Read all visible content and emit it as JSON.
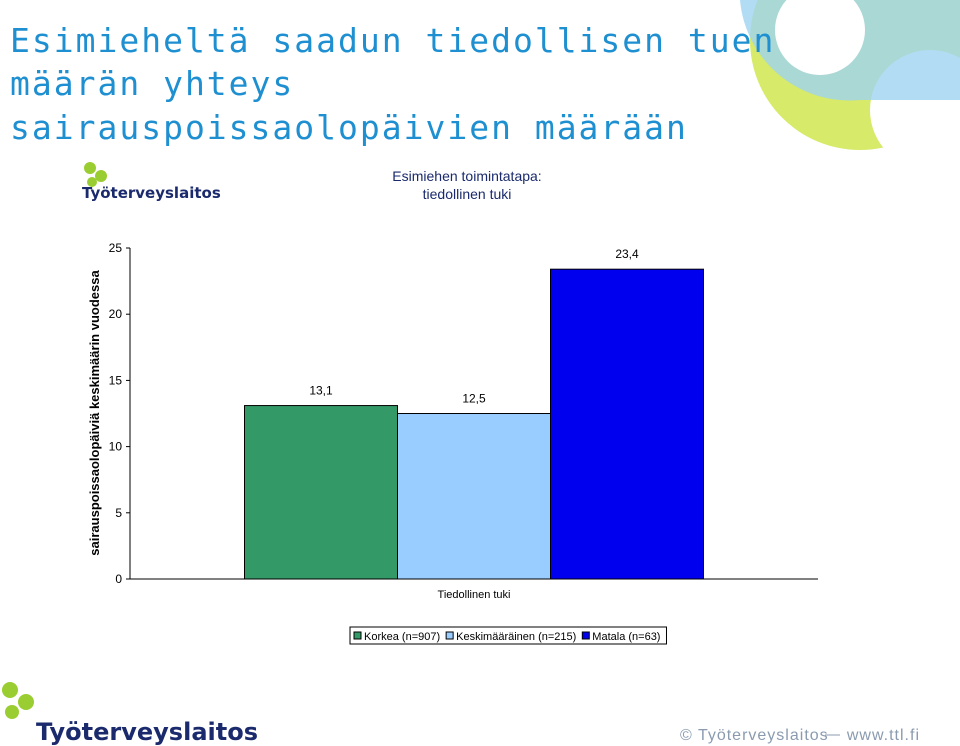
{
  "slide_title": [
    "Esimieheltä saadun tiedollisen tuen",
    "määrän yhteys",
    "sairauspoissaolopäivien määrään"
  ],
  "logo": "Työterveyslaitos",
  "footer": {
    "copyright": "© Työterveyslaitos",
    "url": "www.ttl.fi"
  },
  "chart_data": {
    "type": "bar",
    "title": [
      "Esimiehen toimintatapa:",
      "tiedollinen tuki"
    ],
    "y_label": "sairauspoissaolopäiviä keskimäärin vuodessa",
    "categories": [
      "Tiedollinen tuki"
    ],
    "series": [
      {
        "name": "Korkea (n=907)",
        "color": "#339966",
        "values": [
          13.1
        ],
        "value_labels": [
          "13,1"
        ]
      },
      {
        "name": "Keskimääräinen (n=215)",
        "color": "#99ccff",
        "values": [
          12.5
        ],
        "value_labels": [
          "12,5"
        ]
      },
      {
        "name": "Matala (n=63)",
        "color": "#0000ee",
        "values": [
          23.4
        ],
        "value_labels": [
          "23,4"
        ]
      }
    ],
    "ylim": [
      0,
      25
    ],
    "yticks": [
      0,
      5,
      10,
      15,
      20,
      25
    ],
    "legend": "bottom"
  }
}
